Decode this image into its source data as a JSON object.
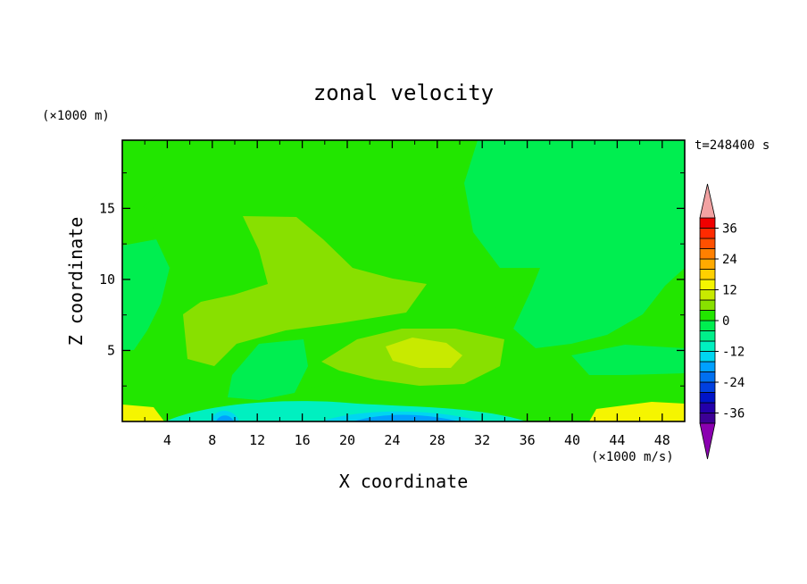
{
  "chart_data": {
    "type": "heatmap",
    "title": "zonal velocity",
    "xlabel": "X coordinate",
    "ylabel": "Z coordinate",
    "x_unit": "(×1000 m/s)",
    "y_unit": "(×1000 m)",
    "time_label": "t=248400 s",
    "xlim": [
      0,
      50
    ],
    "ylim": [
      0,
      19.8
    ],
    "x_ticks": [
      4,
      8,
      12,
      16,
      20,
      24,
      28,
      32,
      36,
      40,
      44,
      48
    ],
    "y_ticks": [
      5,
      10,
      15
    ],
    "colorbar": {
      "levels": [
        -40,
        -36,
        -32,
        -28,
        -24,
        -20,
        -16,
        -12,
        -8,
        -4,
        0,
        4,
        8,
        12,
        16,
        20,
        24,
        28,
        32,
        36,
        40
      ],
      "tick_labels": [
        "36",
        "24",
        "12",
        "0",
        "-12",
        "-24",
        "-36"
      ],
      "tick_values": [
        36,
        24,
        12,
        0,
        -12,
        -24,
        -36
      ],
      "colors_low_to_high": [
        "#3c0096",
        "#2300aa",
        "#0014c8",
        "#0040e0",
        "#0070f0",
        "#00a0ff",
        "#00d6f0",
        "#00f0c0",
        "#00f08a",
        "#00ee50",
        "#22e600",
        "#88e000",
        "#c8ea00",
        "#f5f500",
        "#ffd000",
        "#ffaa00",
        "#ff8000",
        "#ff5000",
        "#ff2a00",
        "#f00000"
      ],
      "under_color": "#8a00b0",
      "over_color": "#f2a2a2"
    },
    "field_levels": {
      "background": 0,
      "regions": [
        {
          "name": "upper-left band",
          "level": 2
        },
        {
          "name": "mid-level positive lobe",
          "level": 6
        },
        {
          "name": "positive core",
          "level": 10
        },
        {
          "name": "right-side weak negative",
          "level": -2
        },
        {
          "name": "surface negative jet core",
          "level": -18
        },
        {
          "name": "surface positive left",
          "level": 14
        },
        {
          "name": "surface positive right",
          "level": 12
        }
      ]
    }
  }
}
